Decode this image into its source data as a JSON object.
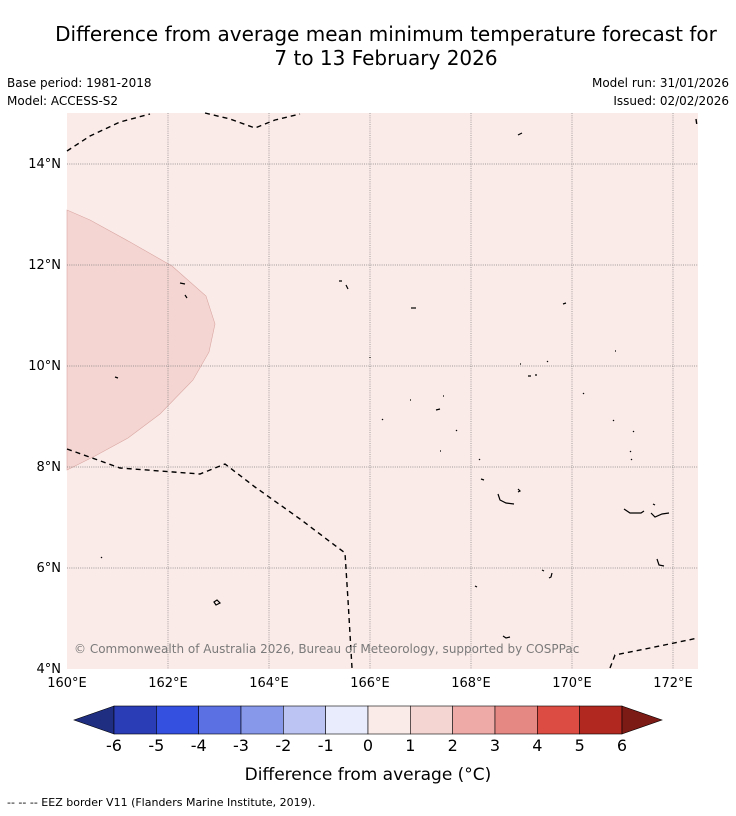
{
  "title": {
    "line1": "Difference from average mean minimum temperature forecast for",
    "line2": "7 to 13 February 2026"
  },
  "info": {
    "base_period": "Base period: 1981-2018",
    "model": "Model: ACCESS-S2",
    "model_run": "Model run: 31/01/2026",
    "issued": "Issued: 02/02/2026"
  },
  "map": {
    "region": "Pacific Ocean, 160°E–172°E, 4°N–15°N",
    "lat_labels": [
      "14°N",
      "12°N",
      "10°N",
      "8°N",
      "6°N",
      "4°N"
    ],
    "lon_labels": [
      "160°E",
      "162°E",
      "164°E",
      "166°E",
      "168°E",
      "170°E",
      "172°E"
    ],
    "credit": "© Commonwealth of Australia 2026, Bureau of Meteorology, supported by COSPPac",
    "background_category": "0 to 1",
    "anomaly_area_category": "1 to 2"
  },
  "colorbar": {
    "colors": [
      "#1f2e80",
      "#2a3db6",
      "#3350e0",
      "#5b70e3",
      "#8797ea",
      "#bcc4f3",
      "#e9ecfc",
      "#fbebe8",
      "#f4d5d2",
      "#eeaaa6",
      "#e58884",
      "#dc4c42",
      "#b0281f",
      "#7c1a16"
    ],
    "labels": [
      "-6",
      "-5",
      "-4",
      "-3",
      "-2",
      "-1",
      "0",
      "1",
      "2",
      "3",
      "4",
      "5",
      "6"
    ],
    "title": "Difference from average (°C)"
  },
  "footer": "-- -- -- EEZ border V11 (Flanders Marine Institute, 2019)."
}
